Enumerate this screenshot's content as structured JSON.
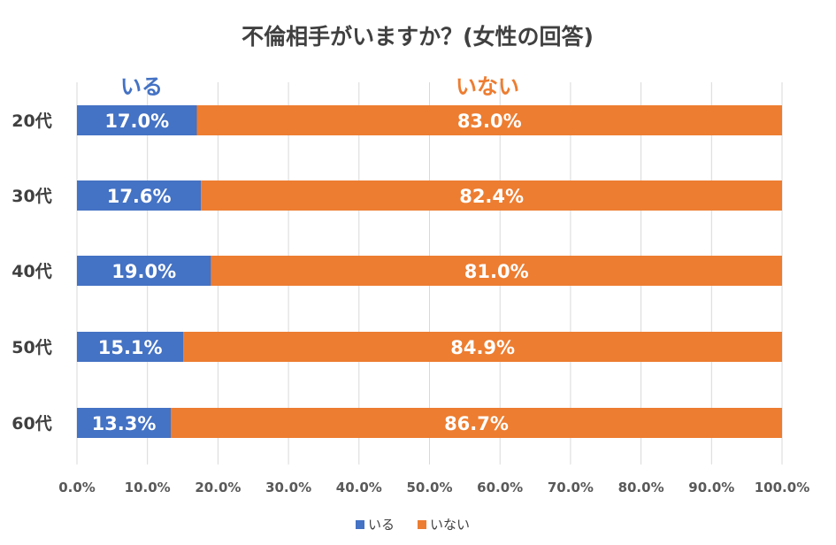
{
  "chart_data": {
    "type": "bar",
    "orientation": "horizontal",
    "stacked": "100%",
    "title": "不倫相手がいますか？(女性の回答)",
    "categories": [
      "20代",
      "30代",
      "40代",
      "50代",
      "60代"
    ],
    "series": [
      {
        "name": "いる",
        "color": "#4472c4",
        "values": [
          17.0,
          17.6,
          19.0,
          15.1,
          13.3
        ]
      },
      {
        "name": "いない",
        "color": "#ed7d31",
        "values": [
          83.0,
          82.4,
          81.0,
          84.9,
          86.7
        ]
      }
    ],
    "data_labels": [
      [
        "17.0%",
        "17.6%",
        "19.0%",
        "15.1%",
        "13.3%"
      ],
      [
        "83.0%",
        "82.4%",
        "81.0%",
        "84.9%",
        "86.7%"
      ]
    ],
    "series_labels": [
      "いる",
      "いない"
    ],
    "xlim": [
      0,
      100
    ],
    "xticks": [
      "0.0%",
      "10.0%",
      "20.0%",
      "30.0%",
      "40.0%",
      "50.0%",
      "60.0%",
      "70.0%",
      "80.0%",
      "90.0%",
      "100.0%"
    ],
    "grid": true,
    "legend": {
      "position": "bottom",
      "entries": [
        "いる",
        "いない"
      ]
    }
  }
}
